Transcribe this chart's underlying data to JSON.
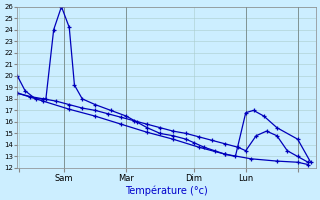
{
  "xlabel": "Température (°c)",
  "bg_color": "#cceeff",
  "line_color": "#0000bb",
  "grid_color": "#aacccc",
  "ylim": [
    12,
    26
  ],
  "yticks": [
    12,
    13,
    14,
    15,
    16,
    17,
    18,
    19,
    20,
    21,
    22,
    23,
    24,
    25,
    26
  ],
  "day_tick_positions": [
    0.5,
    18,
    42,
    68,
    88,
    108
  ],
  "day_tick_labels": [
    "",
    "Sam",
    "Mar",
    "Dim",
    "Lun",
    ""
  ],
  "series1_x": [
    0,
    3,
    7,
    11,
    14,
    17,
    20,
    22,
    25,
    30,
    36,
    42,
    46,
    50,
    55,
    60,
    65,
    68,
    72,
    76,
    80,
    84,
    88,
    91,
    95,
    100,
    108,
    113
  ],
  "series1_y": [
    20.0,
    18.7,
    18.0,
    18.0,
    24.0,
    26.0,
    24.2,
    19.2,
    18.0,
    17.5,
    17.0,
    16.5,
    16.0,
    15.5,
    15.0,
    14.8,
    14.5,
    14.2,
    13.8,
    13.5,
    13.2,
    13.0,
    16.8,
    17.0,
    16.5,
    15.5,
    14.5,
    12.5
  ],
  "series2_x": [
    0,
    5,
    10,
    15,
    20,
    25,
    30,
    35,
    40,
    45,
    50,
    55,
    60,
    65,
    70,
    75,
    80,
    85,
    88,
    92,
    96,
    100,
    104,
    108,
    112
  ],
  "series2_y": [
    18.5,
    18.2,
    18.0,
    17.8,
    17.5,
    17.2,
    17.0,
    16.7,
    16.4,
    16.1,
    15.8,
    15.5,
    15.2,
    15.0,
    14.7,
    14.4,
    14.1,
    13.8,
    13.5,
    14.8,
    15.2,
    14.8,
    13.5,
    13.0,
    12.5
  ],
  "series3_x": [
    0,
    10,
    20,
    30,
    40,
    50,
    60,
    70,
    80,
    90,
    100,
    108,
    112
  ],
  "series3_y": [
    18.5,
    17.8,
    17.1,
    16.5,
    15.8,
    15.1,
    14.5,
    13.8,
    13.2,
    12.8,
    12.6,
    12.5,
    12.3
  ],
  "vline_positions": [
    18,
    42,
    88,
    108
  ],
  "xlim": [
    0,
    115
  ],
  "xlabel_fontsize": 7,
  "ytick_fontsize": 5,
  "xtick_fontsize": 6
}
